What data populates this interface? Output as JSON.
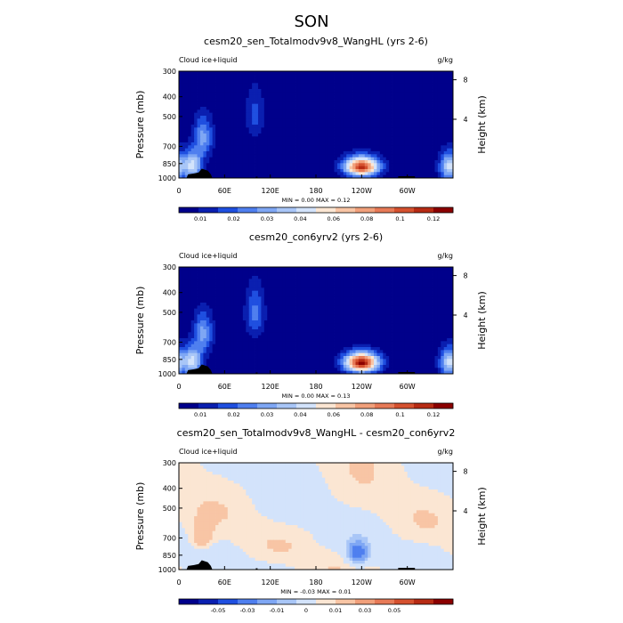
{
  "figure": {
    "title": "SON"
  },
  "chart_data": [
    {
      "type": "heatmap",
      "title": "cesm20_sen_Totalmodv9v8_WangHL (yrs 2-6)",
      "variable_label": "Cloud ice+liquid",
      "units": "g/kg",
      "ylabel": "Pressure (mb)",
      "ylabel_right": "Height (km)",
      "x_ticks": [
        "0",
        "60E",
        "120E",
        "180",
        "120W",
        "60W"
      ],
      "y_ticks": [
        "300",
        "400",
        "500",
        "700",
        "850",
        "1000"
      ],
      "y_ticks_right": [
        "8",
        "4"
      ],
      "stats": {
        "min_text": "MIN =   0.00",
        "max_text": "MAX =   0.12",
        "min": 0.0,
        "max": 0.12
      },
      "colorbar": {
        "labels": [
          "0.01",
          "0.02",
          "0.03",
          "0.04",
          "0.06",
          "0.08",
          "0.1",
          "0.12"
        ],
        "colors": [
          "#00008b",
          "#0a1fb0",
          "#1f4fe0",
          "#4f7fef",
          "#7fa7f4",
          "#a9c6f7",
          "#d3e3fb",
          "#fbe6d3",
          "#f8c5a5",
          "#f1a07b",
          "#e77a57",
          "#d5512f",
          "#b72b14",
          "#8b0000"
        ]
      },
      "features": [
        {
          "lon": 18,
          "p": 870,
          "peak": 0.06
        },
        {
          "lon": 32,
          "p": 630,
          "peak": 0.04
        },
        {
          "lon": 240,
          "p": 880,
          "peak": 0.12
        },
        {
          "lon": 355,
          "p": 880,
          "peak": 0.06
        },
        {
          "lon": 100,
          "p": 490,
          "peak": 0.02
        }
      ]
    },
    {
      "type": "heatmap",
      "title": "cesm20_con6yrv2 (yrs 2-6)",
      "variable_label": "Cloud ice+liquid",
      "units": "g/kg",
      "ylabel": "Pressure (mb)",
      "ylabel_right": "Height (km)",
      "x_ticks": [
        "0",
        "60E",
        "120E",
        "180",
        "120W",
        "60W"
      ],
      "y_ticks": [
        "300",
        "400",
        "500",
        "700",
        "850",
        "1000"
      ],
      "y_ticks_right": [
        "8",
        "4"
      ],
      "stats": {
        "min_text": "MIN =   0.00",
        "max_text": "MAX =   0.13",
        "min": 0.0,
        "max": 0.13
      },
      "colorbar": {
        "labels": [
          "0.01",
          "0.02",
          "0.03",
          "0.04",
          "0.06",
          "0.08",
          "0.1",
          "0.12"
        ],
        "colors": [
          "#00008b",
          "#0a1fb0",
          "#1f4fe0",
          "#4f7fef",
          "#7fa7f4",
          "#a9c6f7",
          "#d3e3fb",
          "#fbe6d3",
          "#f8c5a5",
          "#f1a07b",
          "#e77a57",
          "#d5512f",
          "#b72b14",
          "#8b0000"
        ]
      },
      "features": [
        {
          "lon": 18,
          "p": 870,
          "peak": 0.06
        },
        {
          "lon": 32,
          "p": 630,
          "peak": 0.04
        },
        {
          "lon": 240,
          "p": 880,
          "peak": 0.13
        },
        {
          "lon": 355,
          "p": 880,
          "peak": 0.06
        },
        {
          "lon": 100,
          "p": 500,
          "peak": 0.03
        }
      ]
    },
    {
      "type": "heatmap",
      "title": "cesm20_sen_Totalmodv9v8_WangHL - cesm20_con6yrv2",
      "variable_label": "Cloud ice+liquid",
      "units": "g/kg",
      "ylabel": "Pressure (mb)",
      "ylabel_right": "Height (km)",
      "x_ticks": [
        "0",
        "60E",
        "120E",
        "180",
        "120W",
        "60W"
      ],
      "y_ticks": [
        "300",
        "400",
        "500",
        "700",
        "850",
        "1000"
      ],
      "y_ticks_right": [
        "8",
        "4"
      ],
      "stats": {
        "min_text": "MIN =  -0.03",
        "max_text": "MAX =   0.01",
        "min": -0.03,
        "max": 0.01
      },
      "colorbar": {
        "labels": [
          "-0.05",
          "-0.03",
          "-0.01",
          "0",
          "0.01",
          "0.03",
          "0.05"
        ],
        "colors": [
          "#00008b",
          "#0a1fb0",
          "#1f4fe0",
          "#4f7fef",
          "#7fa7f4",
          "#a9c6f7",
          "#d3e3fb",
          "#fbe6d3",
          "#f8c5a5",
          "#f1a07b",
          "#e77a57",
          "#d5512f",
          "#b72b14",
          "#8b0000"
        ]
      },
      "features": [
        {
          "lon": 235,
          "p": 830,
          "peak": -0.03
        },
        {
          "lon": 30,
          "p": 700,
          "peak": 0.01
        }
      ]
    }
  ]
}
